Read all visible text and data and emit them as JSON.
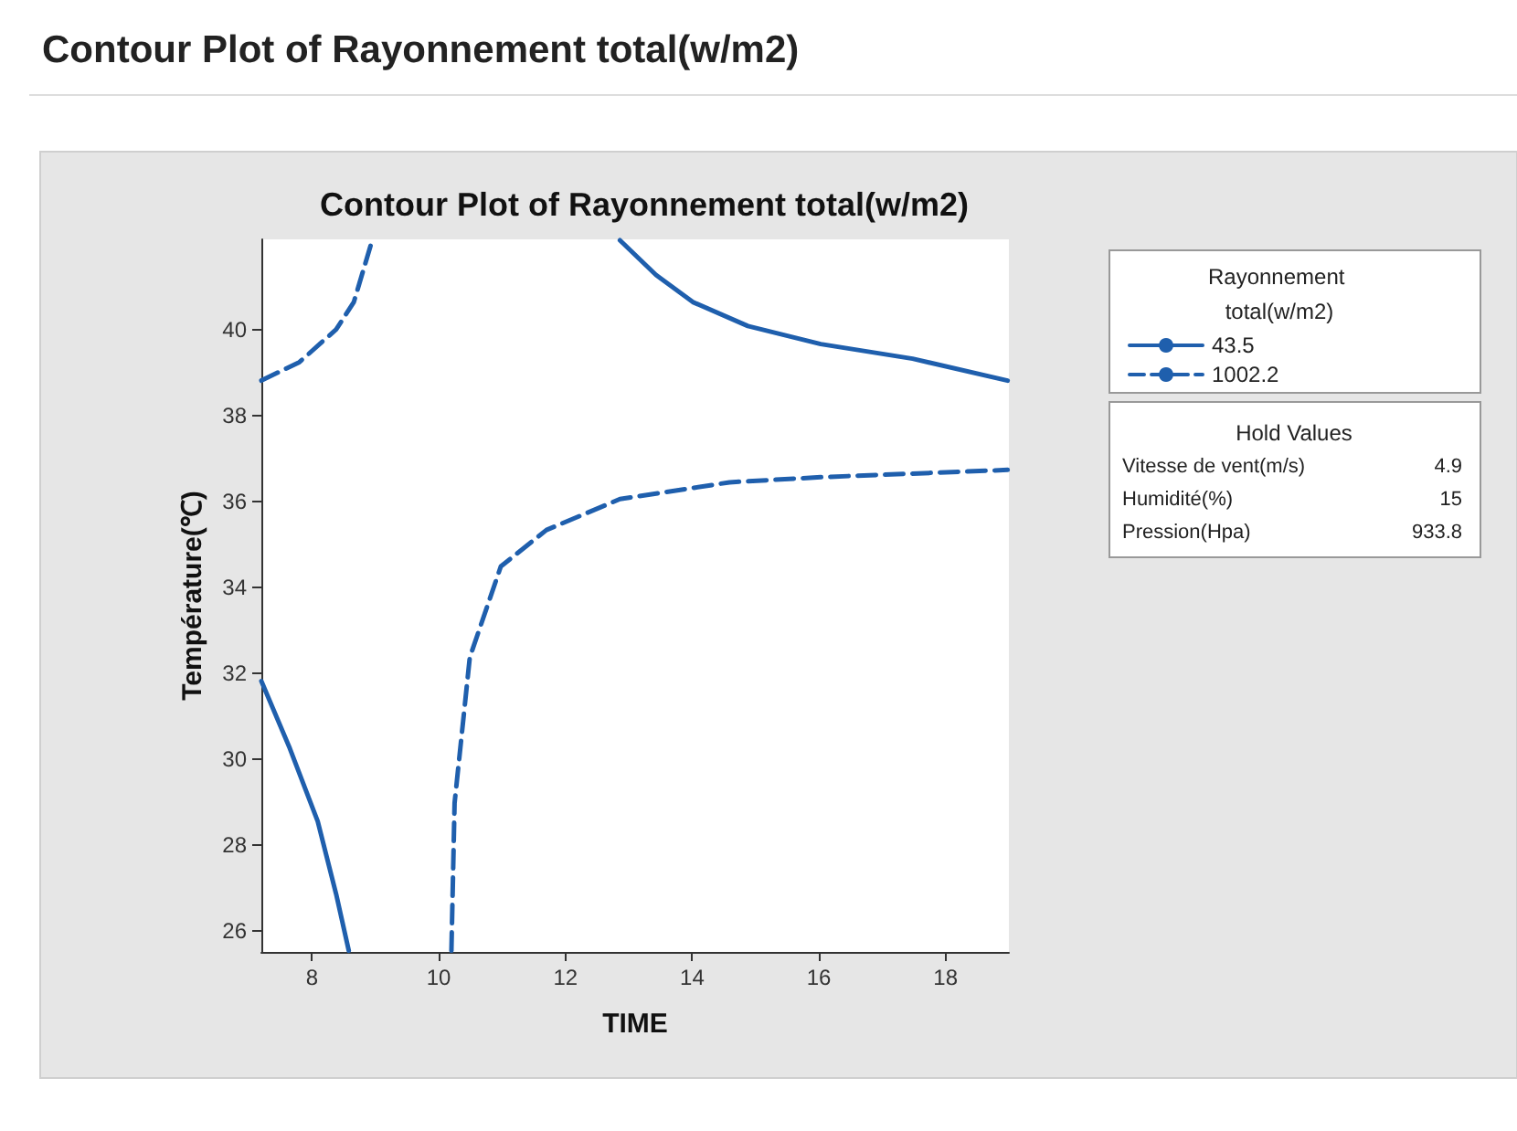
{
  "chart_data": {
    "type": "line",
    "title": "Contour Plot of Rayonnement total(w/m2)",
    "subtitle": "Contour Plot of Rayonnement total(w/m2)",
    "xlabel": "TIME",
    "ylabel": "Température(℃)",
    "legend_title": "Rayonnement total(w/m2)",
    "legend": "right",
    "grid": false,
    "marker": "none",
    "xlim": [
      7.2,
      19
    ],
    "xticks": [
      8,
      10,
      12,
      14,
      16,
      18
    ],
    "ylim": [
      25.5,
      42.1
    ],
    "yticks": [
      26,
      28,
      30,
      32,
      34,
      36,
      38,
      40
    ],
    "series": [
      {
        "name": "43.5",
        "color": "#1f5fad",
        "line_style": "solid",
        "x": [
          12.86,
          13.43,
          14.01,
          14.88,
          16.03,
          17.48,
          18.98
        ],
        "values": [
          42.08,
          41.27,
          40.64,
          40.08,
          39.66,
          39.32,
          38.81
        ]
      },
      {
        "name": "1002.2",
        "color": "#1f5fad",
        "line_style": "dashed",
        "x": [
          7.2,
          7.8,
          8.38,
          8.66,
          8.95
        ],
        "values": [
          38.81,
          39.24,
          40,
          40.64,
          42.08
        ]
      },
      {
        "color": "#1f5fad",
        "line_style": "solid",
        "x": [
          7.2,
          7.65,
          8.09,
          8.38,
          8.58
        ],
        "values": [
          31.81,
          30.24,
          28.54,
          26.85,
          25.53
        ]
      },
      {
        "color": "#1f5fad",
        "line_style": "dashed",
        "x": [
          10.2,
          10.25,
          10.49,
          10.98,
          11.7,
          12.86,
          14.59,
          16.03,
          18.98
        ],
        "values": [
          25.53,
          28.97,
          32.36,
          34.48,
          35.33,
          36.05,
          36.44,
          36.56,
          36.73
        ]
      }
    ],
    "annotations": [
      "Hold Values",
      "Vitesse de vent(m/s)",
      "4.9",
      "Humidité(%)",
      "15",
      "Pression(Hpa)",
      "933.8"
    ]
  }
}
